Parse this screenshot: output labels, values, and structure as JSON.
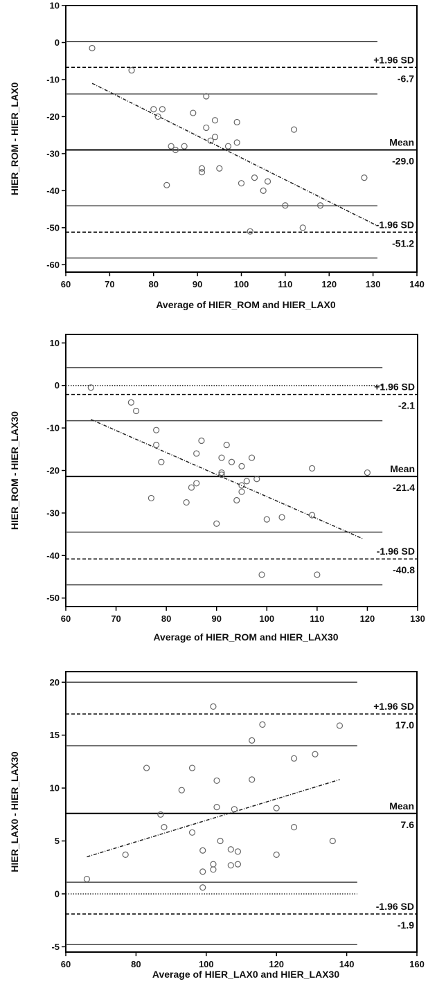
{
  "chart_data": [
    {
      "type": "scatter",
      "xlabel": "Average of HIER_ROM and HIER_LAX0",
      "ylabel": "HIER_ROM - HIER_LAX0",
      "xlim": [
        60,
        140
      ],
      "ylim": [
        -62,
        10
      ],
      "x_ticks": [
        60,
        70,
        80,
        90,
        100,
        110,
        120,
        130,
        140
      ],
      "y_ticks": [
        10,
        0,
        -10,
        -20,
        -30,
        -40,
        -50,
        -60
      ],
      "line_end_x": 131,
      "points": [
        {
          "x": 66,
          "y": -1.5
        },
        {
          "x": 75,
          "y": -7.5
        },
        {
          "x": 80,
          "y": -18
        },
        {
          "x": 81,
          "y": -20
        },
        {
          "x": 82,
          "y": -18
        },
        {
          "x": 83,
          "y": -38.5
        },
        {
          "x": 84,
          "y": -28
        },
        {
          "x": 85,
          "y": -29
        },
        {
          "x": 87,
          "y": -28
        },
        {
          "x": 89,
          "y": -19
        },
        {
          "x": 91,
          "y": -34
        },
        {
          "x": 91,
          "y": -35
        },
        {
          "x": 92,
          "y": -14.5
        },
        {
          "x": 92,
          "y": -23
        },
        {
          "x": 93,
          "y": -26.5
        },
        {
          "x": 94,
          "y": -21
        },
        {
          "x": 94,
          "y": -25.5
        },
        {
          "x": 95,
          "y": -34
        },
        {
          "x": 97,
          "y": -28
        },
        {
          "x": 99,
          "y": -27
        },
        {
          "x": 99,
          "y": -21.5
        },
        {
          "x": 100,
          "y": -38
        },
        {
          "x": 102,
          "y": -51
        },
        {
          "x": 103,
          "y": -36.5
        },
        {
          "x": 105,
          "y": -40
        },
        {
          "x": 106,
          "y": -37.5
        },
        {
          "x": 110,
          "y": -44
        },
        {
          "x": 112,
          "y": -23.5
        },
        {
          "x": 114,
          "y": -50
        },
        {
          "x": 118,
          "y": -44
        },
        {
          "x": 128,
          "y": -36.5
        }
      ],
      "mean": -29.0,
      "upper_loa": -6.7,
      "lower_loa": -51.2,
      "upper_ci_lines": [
        0.3,
        -13.9
      ],
      "mean_ci_lines": [
        -29.0
      ],
      "lower_ci_lines": [
        -44.1,
        -58.2
      ],
      "zero_line": 0.3,
      "regression": {
        "x1": 66,
        "y1": -11,
        "x2": 131,
        "y2": -49.5
      },
      "annotations": {
        "upper_label": "+1.96 SD",
        "upper_value": "-6.7",
        "mean_label": "Mean",
        "mean_value": "-29.0",
        "lower_label": "-1.96 SD",
        "lower_value": "-51.2"
      },
      "zero_line_style": "solid"
    },
    {
      "type": "scatter",
      "xlabel": "Average of HIER_ROM and HIER_LAX30",
      "ylabel": "HIER_ROM - HIER_LAX30",
      "xlim": [
        60,
        130
      ],
      "ylim": [
        -52,
        12
      ],
      "x_ticks": [
        60,
        70,
        80,
        90,
        100,
        110,
        120,
        130
      ],
      "y_ticks": [
        10,
        0,
        -10,
        -20,
        -30,
        -40,
        -50
      ],
      "line_end_x": 123,
      "points": [
        {
          "x": 65,
          "y": -0.5
        },
        {
          "x": 73,
          "y": -4
        },
        {
          "x": 74,
          "y": -6
        },
        {
          "x": 77,
          "y": -26.5
        },
        {
          "x": 78,
          "y": -10.5
        },
        {
          "x": 78,
          "y": -14
        },
        {
          "x": 79,
          "y": -18
        },
        {
          "x": 84,
          "y": -27.5
        },
        {
          "x": 85,
          "y": -24
        },
        {
          "x": 86,
          "y": -16
        },
        {
          "x": 86,
          "y": -23
        },
        {
          "x": 87,
          "y": -13
        },
        {
          "x": 90,
          "y": -32.5
        },
        {
          "x": 91,
          "y": -17
        },
        {
          "x": 91,
          "y": -20.5
        },
        {
          "x": 91,
          "y": -21
        },
        {
          "x": 92,
          "y": -14
        },
        {
          "x": 93,
          "y": -18
        },
        {
          "x": 94,
          "y": -27
        },
        {
          "x": 95,
          "y": -19
        },
        {
          "x": 95,
          "y": -23.5
        },
        {
          "x": 95,
          "y": -25
        },
        {
          "x": 96,
          "y": -22.5
        },
        {
          "x": 97,
          "y": -17
        },
        {
          "x": 98,
          "y": -22
        },
        {
          "x": 99,
          "y": -44.5
        },
        {
          "x": 100,
          "y": -31.5
        },
        {
          "x": 103,
          "y": -31
        },
        {
          "x": 109,
          "y": -19.5
        },
        {
          "x": 109,
          "y": -30.5
        },
        {
          "x": 110,
          "y": -44.5
        },
        {
          "x": 120,
          "y": -20.5
        }
      ],
      "mean": -21.4,
      "upper_loa": -2.1,
      "lower_loa": -40.8,
      "upper_ci_lines": [
        4.2,
        -8.3
      ],
      "mean_ci_lines": [
        -21.4
      ],
      "lower_ci_lines": [
        -34.5,
        -46.9
      ],
      "zero_line": 0,
      "regression": {
        "x1": 65,
        "y1": -8,
        "x2": 119,
        "y2": -36
      },
      "annotations": {
        "upper_label": "+1.96 SD",
        "upper_value": "-2.1",
        "mean_label": "Mean",
        "mean_value": "-21.4",
        "lower_label": "-1.96 SD",
        "lower_value": "-40.8"
      },
      "zero_line_style": "dotted"
    },
    {
      "type": "scatter",
      "xlabel": "Average of HIER_LAX0 and HIER_LAX30",
      "ylabel": "HIER_LAX0 - HIER_LAX30",
      "xlim": [
        60,
        160
      ],
      "ylim": [
        -5.5,
        21
      ],
      "x_ticks": [
        60,
        80,
        100,
        120,
        140,
        160
      ],
      "y_ticks": [
        20,
        15,
        10,
        5,
        0,
        -5
      ],
      "line_end_x": 143,
      "points": [
        {
          "x": 66,
          "y": 1.4
        },
        {
          "x": 77,
          "y": 3.7
        },
        {
          "x": 83,
          "y": 11.9
        },
        {
          "x": 87,
          "y": 7.5
        },
        {
          "x": 88,
          "y": 6.3
        },
        {
          "x": 93,
          "y": 9.8
        },
        {
          "x": 96,
          "y": 5.8
        },
        {
          "x": 96,
          "y": 11.9
        },
        {
          "x": 99,
          "y": 0.6
        },
        {
          "x": 99,
          "y": 2.1
        },
        {
          "x": 99,
          "y": 4.1
        },
        {
          "x": 102,
          "y": 2.3
        },
        {
          "x": 102,
          "y": 2.8
        },
        {
          "x": 102,
          "y": 17.7
        },
        {
          "x": 103,
          "y": 8.2
        },
        {
          "x": 103,
          "y": 10.7
        },
        {
          "x": 104,
          "y": 5.0
        },
        {
          "x": 107,
          "y": 4.2
        },
        {
          "x": 107,
          "y": 2.7
        },
        {
          "x": 108,
          "y": 8.0
        },
        {
          "x": 109,
          "y": 4.0
        },
        {
          "x": 109,
          "y": 2.8
        },
        {
          "x": 113,
          "y": 10.8
        },
        {
          "x": 113,
          "y": 14.5
        },
        {
          "x": 116,
          "y": 16.0
        },
        {
          "x": 120,
          "y": 3.7
        },
        {
          "x": 120,
          "y": 8.1
        },
        {
          "x": 125,
          "y": 6.3
        },
        {
          "x": 125,
          "y": 12.8
        },
        {
          "x": 131,
          "y": 13.2
        },
        {
          "x": 136,
          "y": 5.0
        },
        {
          "x": 138,
          "y": 15.9
        }
      ],
      "mean": 7.6,
      "upper_loa": 17.0,
      "lower_loa": -1.9,
      "upper_ci_lines": [
        20.0,
        14.0
      ],
      "mean_ci_lines": [
        7.6
      ],
      "lower_ci_lines": [
        1.1,
        -4.8
      ],
      "zero_line": 0,
      "regression": {
        "x1": 66,
        "y1": 3.5,
        "x2": 138,
        "y2": 10.8
      },
      "annotations": {
        "upper_label": "+1.96 SD",
        "upper_value": "17.0",
        "mean_label": "Mean",
        "mean_value": "7.6",
        "lower_label": "-1.96 SD",
        "lower_value": "-1.9"
      },
      "zero_line_style": "dotted"
    }
  ]
}
